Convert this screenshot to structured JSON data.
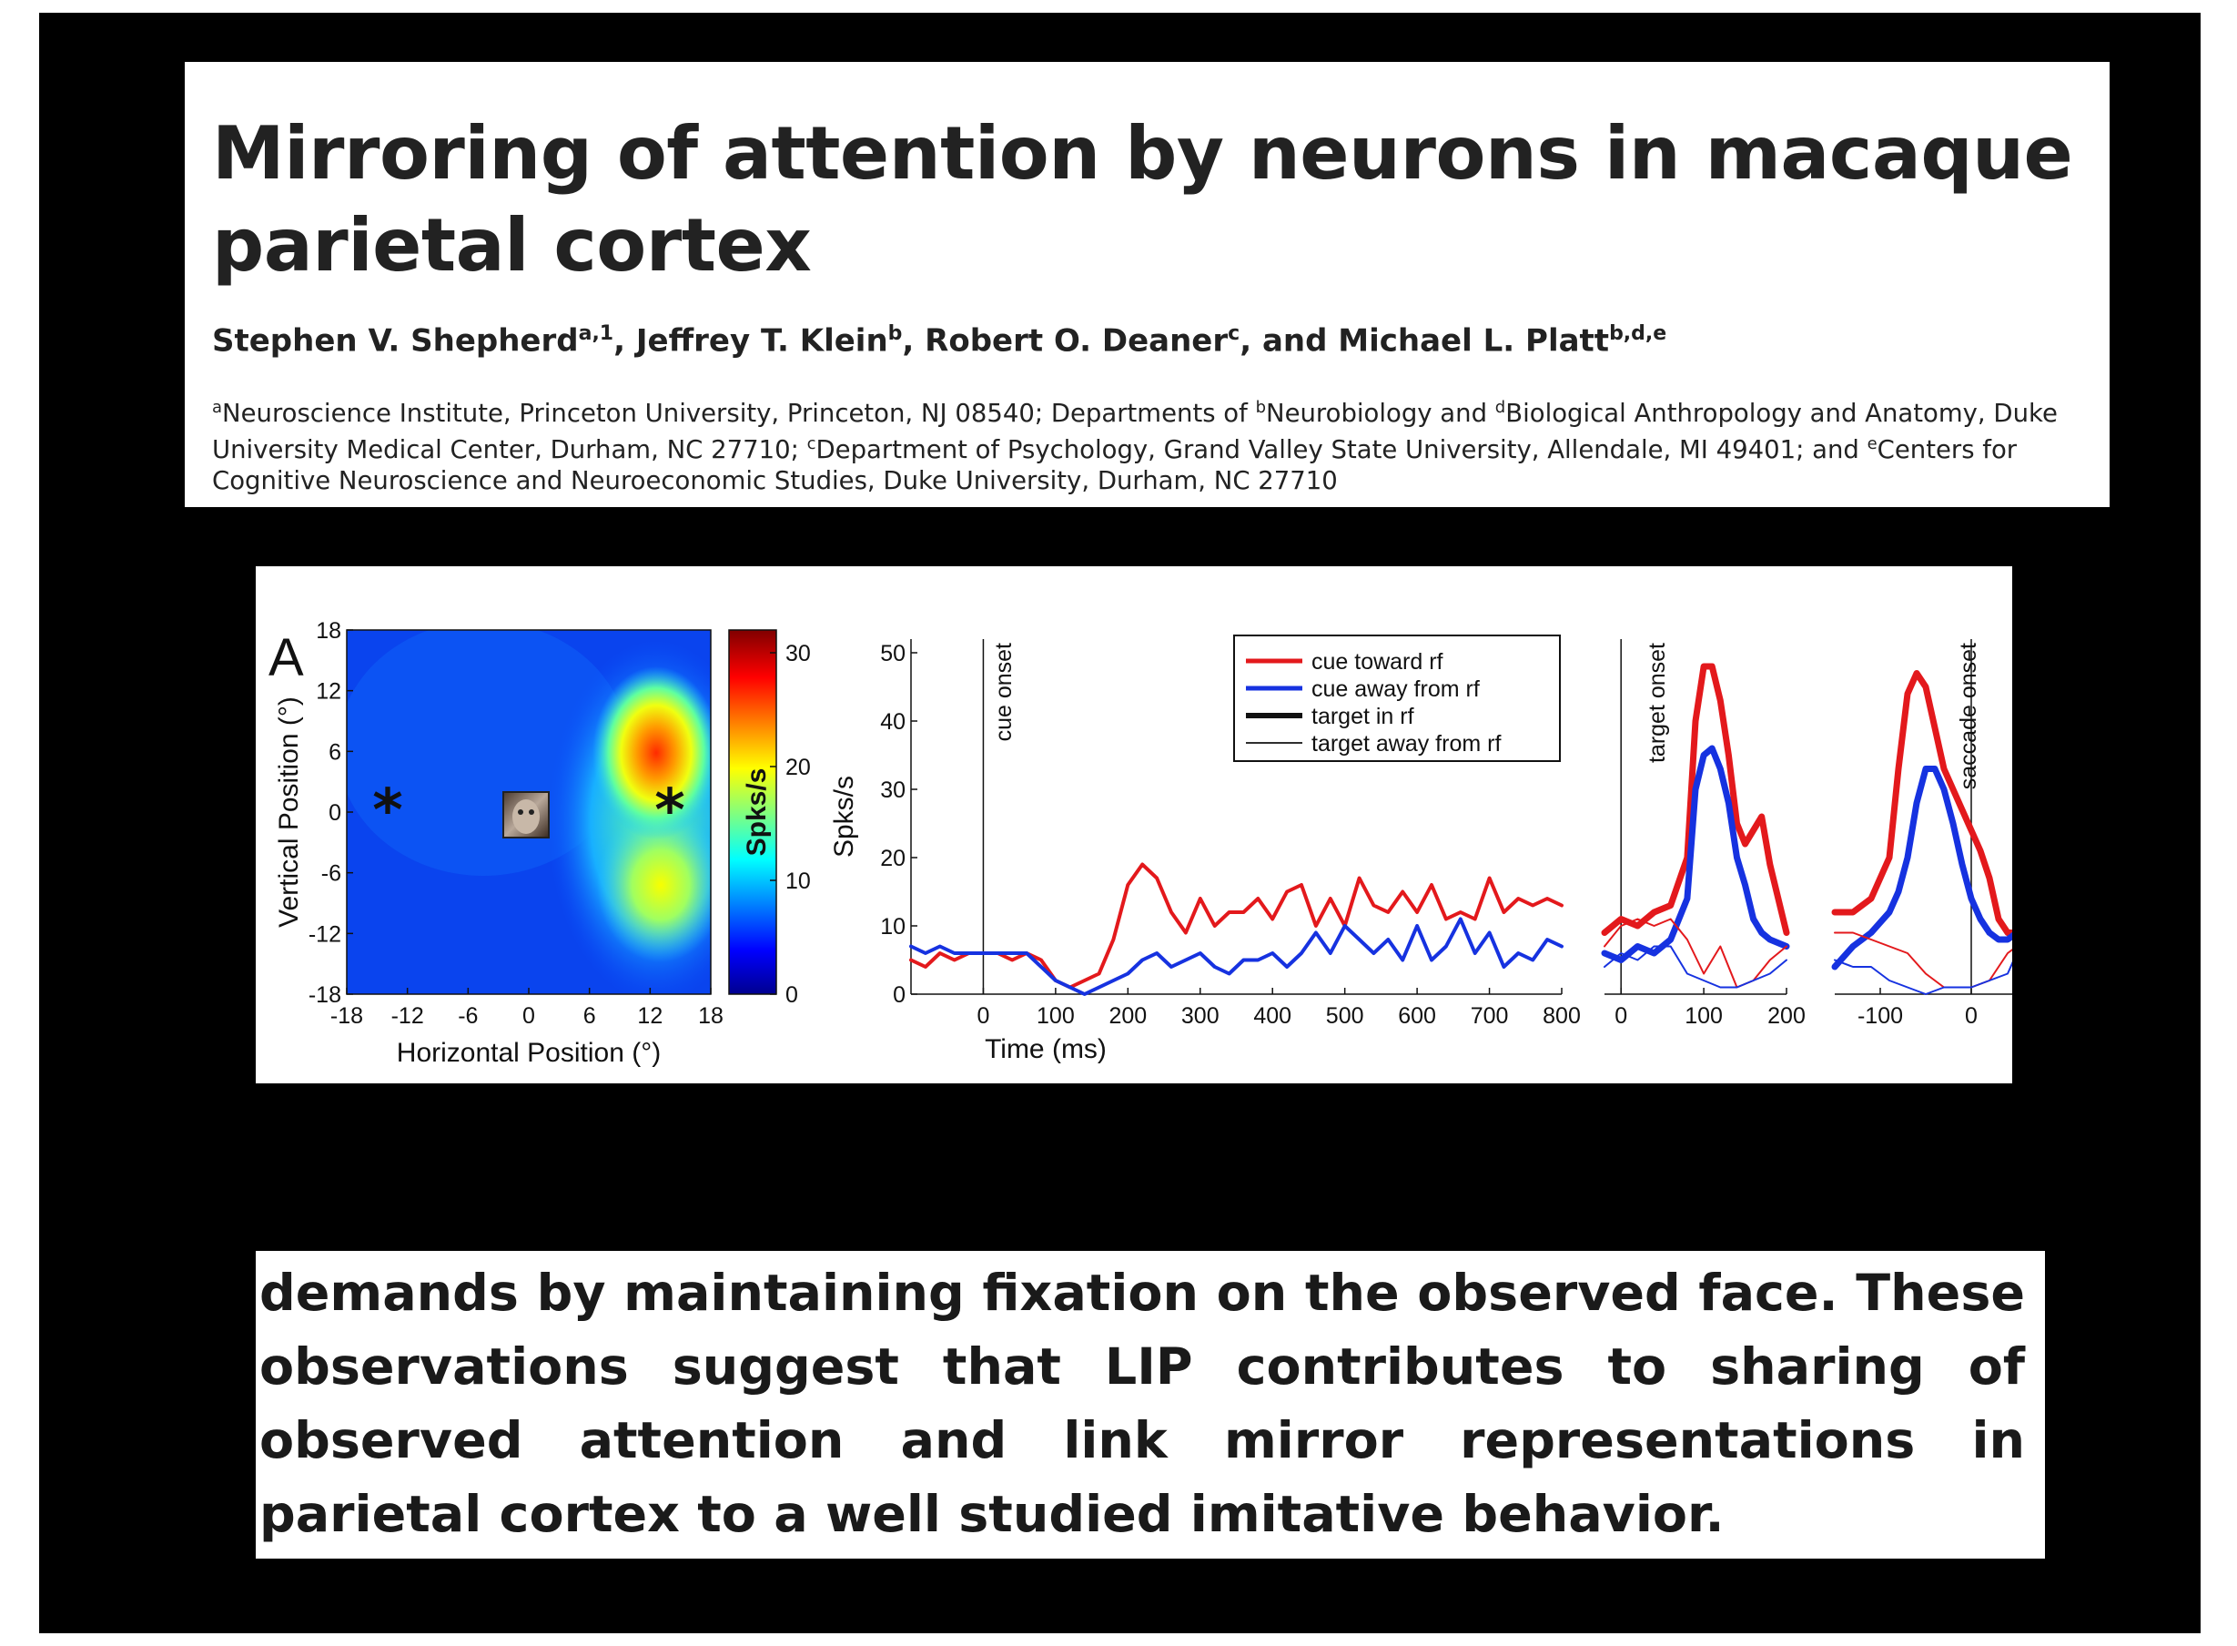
{
  "header": {
    "title_line1": "Mirroring of attention by neurons in macaque",
    "title_line2": "parietal cortex",
    "authors": [
      {
        "name": "Stephen V. Shepherd",
        "sup": "a,1",
        "sep": ", "
      },
      {
        "name": "Jeffrey T. Klein",
        "sup": "b",
        "sep": ", "
      },
      {
        "name": "Robert O. Deaner",
        "sup": "c",
        "sep": ", and "
      },
      {
        "name": "Michael L. Platt",
        "sup": "b,d,e",
        "sep": ""
      }
    ],
    "affiliations": [
      {
        "sup": "a",
        "text": "Neuroscience Institute, Princeton University, Princeton, NJ 08540; Departments of "
      },
      {
        "sup": "b",
        "text": "Neurobiology and "
      },
      {
        "sup": "d",
        "text": "Biological Anthropology and Anatomy, Duke University Medical Center, Durham, NC 27710; "
      },
      {
        "sup": "c",
        "text": "Department of Psychology, Grand Valley State University, Allendale, MI 49401; and "
      },
      {
        "sup": "e",
        "text": "Centers for Cognitive Neuroscience and Neuroeconomic Studies, Duke University, Durham, NC 27710"
      }
    ]
  },
  "abstract_excerpt": "demands by maintaining fixation on the observed face. These observations suggest that LIP contributes to sharing of observed attention and link mirror representations in parietal cortex to a well studied imitative behavior.",
  "colors": {
    "cue_toward": "#e3191c",
    "cue_away": "#1632e0",
    "text": "#222222"
  },
  "figure": {
    "panel_label": "A",
    "colorbar_label": "Spks/s",
    "time_ylabel": "Spks/s"
  },
  "chart_data": [
    {
      "type": "heatmap",
      "xlabel": "Horizontal Position (°)",
      "ylabel": "Vertical Position (°)",
      "x_ticks": [
        "-18",
        "-12",
        "-6",
        "0",
        "6",
        "12",
        "18"
      ],
      "y_ticks": [
        "18",
        "12",
        "6",
        "0",
        "-6",
        "-12",
        "-18"
      ],
      "xlim": [
        -18,
        18
      ],
      "ylim": [
        -18,
        18
      ],
      "colorbar": {
        "label": "Spks/s",
        "ticks": [
          "0",
          "10",
          "20",
          "30"
        ],
        "range": [
          0,
          32
        ]
      },
      "hotspots": [
        {
          "x": 13,
          "y": 6,
          "value": 30
        },
        {
          "x": 13,
          "y": -6,
          "value": 18
        },
        {
          "x": 14,
          "y": 0,
          "value": 16
        }
      ],
      "markers": [
        {
          "kind": "asterisk",
          "x": -14,
          "y": 0
        },
        {
          "kind": "asterisk",
          "x": 14,
          "y": 0
        },
        {
          "kind": "face-image",
          "x": 0,
          "y": 0
        }
      ]
    },
    {
      "type": "line",
      "xlabel": "Time (ms)",
      "ylabel": "Spks/s",
      "xlim": [
        -100,
        800
      ],
      "ylim": [
        0,
        52
      ],
      "x_ticks": [
        "0",
        "100",
        "200",
        "300",
        "400",
        "500",
        "600",
        "700",
        "800"
      ],
      "y_ticks": [
        "0",
        "10",
        "20",
        "30",
        "40",
        "50"
      ],
      "event_line": {
        "x": 0,
        "label": "cue onset"
      },
      "legend": [
        "cue toward rf",
        "cue away from rf",
        "target in rf",
        "target away from rf"
      ],
      "series": [
        {
          "name": "cue toward rf",
          "x": [
            -100,
            -80,
            -60,
            -40,
            -20,
            0,
            20,
            40,
            60,
            80,
            100,
            120,
            140,
            160,
            180,
            200,
            220,
            240,
            260,
            280,
            300,
            320,
            340,
            360,
            380,
            400,
            420,
            440,
            460,
            480,
            500,
            520,
            540,
            560,
            580,
            600,
            620,
            640,
            660,
            680,
            700,
            720,
            740,
            760,
            780,
            800
          ],
          "y": [
            5,
            4,
            6,
            5,
            6,
            6,
            6,
            5,
            6,
            5,
            2,
            1,
            2,
            3,
            8,
            16,
            19,
            17,
            12,
            9,
            14,
            10,
            12,
            12,
            14,
            11,
            15,
            16,
            10,
            14,
            10,
            17,
            13,
            12,
            15,
            12,
            16,
            11,
            12,
            11,
            17,
            12,
            14,
            13,
            14,
            13
          ]
        },
        {
          "name": "cue away from rf",
          "x": [
            -100,
            -80,
            -60,
            -40,
            -20,
            0,
            20,
            40,
            60,
            80,
            100,
            120,
            140,
            160,
            180,
            200,
            220,
            240,
            260,
            280,
            300,
            320,
            340,
            360,
            380,
            400,
            420,
            440,
            460,
            480,
            500,
            520,
            540,
            560,
            580,
            600,
            620,
            640,
            660,
            680,
            700,
            720,
            740,
            760,
            780,
            800
          ],
          "y": [
            7,
            6,
            7,
            6,
            6,
            6,
            6,
            6,
            6,
            4,
            2,
            1,
            0,
            1,
            2,
            3,
            5,
            6,
            4,
            5,
            6,
            4,
            3,
            5,
            5,
            6,
            4,
            6,
            9,
            6,
            10,
            8,
            6,
            8,
            5,
            10,
            5,
            7,
            11,
            6,
            9,
            4,
            6,
            5,
            8,
            7
          ]
        }
      ]
    },
    {
      "type": "line",
      "xlim": [
        -20,
        200
      ],
      "ylim": [
        0,
        52
      ],
      "x_ticks": [
        "0",
        "100",
        "200"
      ],
      "event_line": {
        "x": 0,
        "label": "target onset"
      },
      "series": [
        {
          "name": "cue toward rf",
          "style": "target in rf",
          "x": [
            -20,
            0,
            20,
            40,
            60,
            80,
            90,
            100,
            110,
            120,
            130,
            140,
            150,
            160,
            170,
            180,
            200
          ],
          "y": [
            9,
            11,
            10,
            12,
            13,
            20,
            40,
            48,
            48,
            43,
            35,
            25,
            22,
            24,
            26,
            19,
            9
          ]
        },
        {
          "name": "cue away from rf",
          "style": "target in rf",
          "x": [
            -20,
            0,
            20,
            40,
            60,
            80,
            90,
            100,
            110,
            120,
            130,
            140,
            150,
            160,
            170,
            180,
            200
          ],
          "y": [
            6,
            5,
            7,
            6,
            8,
            14,
            30,
            35,
            36,
            33,
            28,
            20,
            16,
            11,
            9,
            8,
            7
          ]
        },
        {
          "name": "cue toward rf",
          "style": "target away from rf",
          "x": [
            -20,
            0,
            20,
            40,
            60,
            80,
            100,
            120,
            140,
            160,
            180,
            200
          ],
          "y": [
            7,
            10,
            11,
            10,
            11,
            8,
            3,
            7,
            1,
            2,
            5,
            7
          ]
        },
        {
          "name": "cue away from rf",
          "style": "target away from rf",
          "x": [
            -20,
            0,
            20,
            40,
            60,
            80,
            100,
            120,
            140,
            160,
            180,
            200
          ],
          "y": [
            4,
            6,
            5,
            7,
            7,
            3,
            2,
            1,
            1,
            2,
            3,
            5
          ]
        }
      ]
    },
    {
      "type": "line",
      "xlim": [
        -150,
        50
      ],
      "ylim": [
        0,
        52
      ],
      "x_ticks": [
        "-100",
        "0"
      ],
      "event_line": {
        "x": 0,
        "label": "saccade onset"
      },
      "series": [
        {
          "name": "cue toward rf",
          "style": "target in rf",
          "x": [
            -150,
            -130,
            -110,
            -90,
            -80,
            -70,
            -60,
            -50,
            -40,
            -30,
            -20,
            -10,
            0,
            10,
            20,
            30,
            40,
            50
          ],
          "y": [
            12,
            12,
            14,
            20,
            33,
            44,
            47,
            45,
            39,
            33,
            30,
            27,
            24,
            21,
            17,
            11,
            9,
            9
          ]
        },
        {
          "name": "cue away from rf",
          "style": "target in rf",
          "x": [
            -150,
            -130,
            -110,
            -90,
            -80,
            -70,
            -60,
            -50,
            -40,
            -30,
            -20,
            -10,
            0,
            10,
            20,
            30,
            40,
            50
          ],
          "y": [
            4,
            7,
            9,
            12,
            15,
            20,
            28,
            33,
            33,
            30,
            25,
            19,
            14,
            11,
            9,
            8,
            8,
            9
          ]
        },
        {
          "name": "cue toward rf",
          "style": "target away from rf",
          "x": [
            -150,
            -130,
            -110,
            -90,
            -70,
            -50,
            -30,
            -10,
            0,
            20,
            40,
            50
          ],
          "y": [
            9,
            9,
            8,
            7,
            6,
            3,
            1,
            1,
            1,
            2,
            6,
            7
          ]
        },
        {
          "name": "cue away from rf",
          "style": "target away from rf",
          "x": [
            -150,
            -130,
            -110,
            -90,
            -70,
            -50,
            -30,
            -10,
            0,
            20,
            40,
            50
          ],
          "y": [
            5,
            4,
            4,
            2,
            1,
            0,
            1,
            1,
            1,
            2,
            3,
            6
          ]
        }
      ]
    }
  ]
}
